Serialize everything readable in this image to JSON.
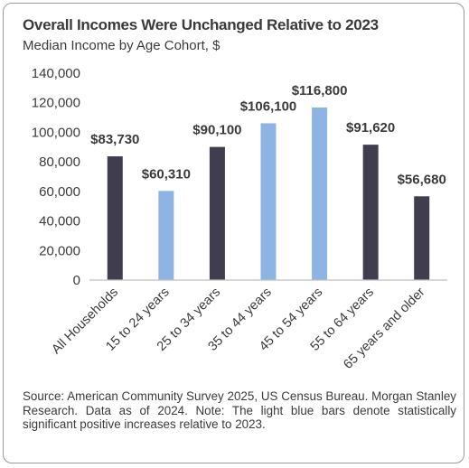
{
  "title": "Overall Incomes Were Unchanged Relative to 2023",
  "subtitle": "Median Income by Age Cohort, $",
  "source": "Source: American Community Survey 2025, US Census Bureau. Morgan Stanley Research. Data as of 2024. Note: The light blue bars denote statistically significant positive increases relative to 2023.",
  "colors": {
    "dark": "#403d4f",
    "light": "#8db4e2",
    "axis": "#bfbfbf",
    "text": "#3a3a3a"
  },
  "chart_data": {
    "type": "bar",
    "categories": [
      "All Households",
      "15 to 24 years",
      "25 to 34 years",
      "35 to 44 years",
      "45 to 54 years",
      "55 to 64 years",
      "65 years and older"
    ],
    "values": [
      83730,
      60310,
      90100,
      106100,
      116800,
      91620,
      56680
    ],
    "data_labels": [
      "$83,730",
      "$60,310",
      "$90,100",
      "$106,100",
      "$116,800",
      "$91,620",
      "$56,680"
    ],
    "significant": [
      false,
      true,
      false,
      true,
      true,
      false,
      false
    ],
    "yticks": [
      "0",
      "20,000",
      "40,000",
      "60,000",
      "80,000",
      "100,000",
      "120,000",
      "140,000"
    ],
    "ylim": [
      0,
      140000
    ],
    "grid": false
  }
}
